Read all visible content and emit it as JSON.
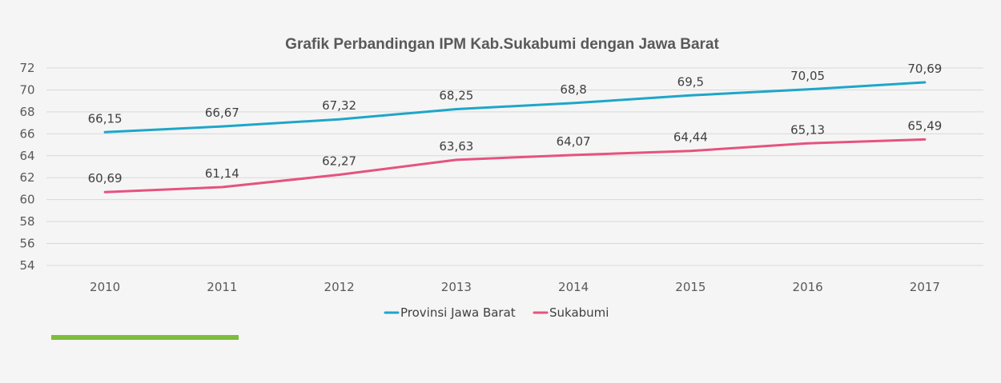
{
  "chart_data": {
    "type": "line",
    "title": "Grafik Perbandingan IPM Kab.Sukabumi dengan Jawa Barat",
    "xlabel": "",
    "ylabel": "",
    "categories": [
      "2010",
      "2011",
      "2012",
      "2013",
      "2014",
      "2015",
      "2016",
      "2017"
    ],
    "ylim": [
      54,
      72
    ],
    "yticks": [
      "72",
      "70",
      "68",
      "66",
      "64",
      "62",
      "60",
      "58",
      "56",
      "54"
    ],
    "grid": true,
    "legend_position": "bottom",
    "series": [
      {
        "name": "Provinsi Jawa Barat",
        "color": "#1ea6c9",
        "values": [
          66.15,
          66.67,
          67.32,
          68.25,
          68.8,
          69.5,
          70.05,
          70.69
        ],
        "labels": [
          "66,15",
          "66,67",
          "67,32",
          "68,25",
          "68,8",
          "69,5",
          "70,05",
          "70,69"
        ]
      },
      {
        "name": "Sukabumi",
        "color": "#e5537f",
        "values": [
          60.69,
          61.14,
          62.27,
          63.63,
          64.07,
          64.44,
          65.13,
          65.49
        ],
        "labels": [
          "60,69",
          "61,14",
          "62,27",
          "63,63",
          "64,07",
          "64,44",
          "65,13",
          "65,49"
        ]
      }
    ]
  },
  "colors": {
    "background": "#f5f5f5",
    "accent_bar": "#7dbd3a"
  }
}
